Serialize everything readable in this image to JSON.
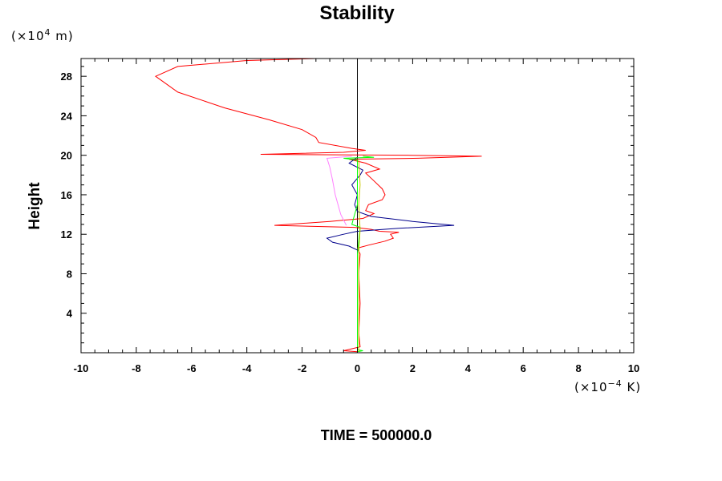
{
  "chart_data": {
    "type": "line",
    "title": "Stability",
    "ylabel": "Height",
    "xlabel": "",
    "x_unit_prefix": "(×10",
    "x_unit_exp": "−4",
    "x_unit_suffix": " K)",
    "y_unit_prefix": "(×10",
    "y_unit_exp": "4",
    "y_unit_suffix": " m)",
    "xlim": [
      -10,
      10
    ],
    "ylim": [
      0,
      29.8
    ],
    "xticks": [
      -10,
      -8,
      -6,
      -4,
      -2,
      0,
      2,
      4,
      6,
      8,
      10
    ],
    "yticks": [
      4,
      8,
      12,
      16,
      20,
      24,
      28
    ],
    "grid": false,
    "footer": "TIME = 500000.0",
    "series": [
      {
        "color": "#ff0000",
        "points": [
          [
            0,
            0.1
          ],
          [
            -0.5,
            0.2
          ],
          [
            0.1,
            0.6
          ],
          [
            0.05,
            2
          ],
          [
            0.1,
            5
          ],
          [
            0.05,
            8
          ],
          [
            0.1,
            10
          ],
          [
            0,
            10.6
          ],
          [
            0.4,
            10.9
          ],
          [
            1.0,
            11.3
          ],
          [
            1.3,
            11.6
          ],
          [
            1.2,
            12.0
          ],
          [
            1.5,
            12.2
          ],
          [
            0.8,
            12.3
          ],
          [
            0.5,
            12.5
          ],
          [
            -0.1,
            12.7
          ],
          [
            -3.0,
            12.9
          ],
          [
            -1.0,
            13.3
          ],
          [
            0.2,
            13.6
          ],
          [
            0.6,
            14.1
          ],
          [
            0.3,
            14.4
          ],
          [
            0.4,
            15.0
          ],
          [
            0.9,
            15.5
          ],
          [
            1.0,
            16.0
          ],
          [
            0.9,
            16.6
          ],
          [
            0.6,
            17.4
          ],
          [
            0.3,
            18.2
          ],
          [
            0.8,
            18.6
          ],
          [
            0.3,
            19.2
          ],
          [
            -0.3,
            19.6
          ],
          [
            2.2,
            19.7
          ],
          [
            4.5,
            19.9
          ],
          [
            2.0,
            20.0
          ],
          [
            -3.5,
            20.1
          ],
          [
            -0.5,
            20.3
          ],
          [
            0.3,
            20.5
          ],
          [
            -0.2,
            20.7
          ],
          [
            -1.4,
            21.3
          ],
          [
            -1.5,
            21.8
          ],
          [
            -2.0,
            22.6
          ],
          [
            -3.2,
            23.6
          ],
          [
            -4.8,
            24.8
          ],
          [
            -6.5,
            26.4
          ],
          [
            -7.3,
            28.0
          ],
          [
            -6.5,
            29.0
          ],
          [
            -4.0,
            29.6
          ],
          [
            -1.5,
            29.8
          ]
        ]
      },
      {
        "color": "#00008b",
        "points": [
          [
            0,
            0.1
          ],
          [
            0,
            4
          ],
          [
            0,
            8
          ],
          [
            0,
            10.4
          ],
          [
            -0.3,
            10.8
          ],
          [
            -0.9,
            11.2
          ],
          [
            -1.1,
            11.6
          ],
          [
            -0.5,
            12.0
          ],
          [
            0,
            12.3
          ],
          [
            1.5,
            12.6
          ],
          [
            3.5,
            12.9
          ],
          [
            2.0,
            13.3
          ],
          [
            0.5,
            13.8
          ],
          [
            0,
            14.3
          ],
          [
            -0.1,
            15.0
          ],
          [
            0,
            16.0
          ],
          [
            -0.2,
            17.0
          ],
          [
            0.1,
            18.0
          ],
          [
            0.2,
            18.5
          ],
          [
            -0.3,
            19.2
          ],
          [
            0,
            19.8
          ]
        ]
      },
      {
        "color": "#ff80ff",
        "points": [
          [
            -0.4,
            12.9
          ],
          [
            -0.6,
            14.0
          ],
          [
            -0.8,
            16.0
          ],
          [
            -0.9,
            17.5
          ],
          [
            -1.0,
            18.8
          ],
          [
            -1.1,
            19.7
          ],
          [
            -0.2,
            19.9
          ]
        ]
      },
      {
        "color": "#00ff00",
        "points": [
          [
            0,
            0.1
          ],
          [
            0.2,
            0.2
          ],
          [
            0,
            0.3
          ],
          [
            0,
            5
          ],
          [
            0,
            10
          ],
          [
            0.1,
            12.7
          ],
          [
            -0.2,
            13.0
          ],
          [
            0,
            15
          ],
          [
            0,
            19.5
          ],
          [
            -0.5,
            19.7
          ],
          [
            0.6,
            19.8
          ],
          [
            0.2,
            19.9
          ]
        ]
      },
      {
        "color": "#c8c800",
        "points": [
          [
            0.05,
            0.1
          ],
          [
            0.05,
            5
          ],
          [
            0.05,
            10
          ],
          [
            0.1,
            12.5
          ],
          [
            0.05,
            15
          ],
          [
            0.1,
            17
          ],
          [
            0.05,
            19.5
          ]
        ]
      }
    ]
  }
}
